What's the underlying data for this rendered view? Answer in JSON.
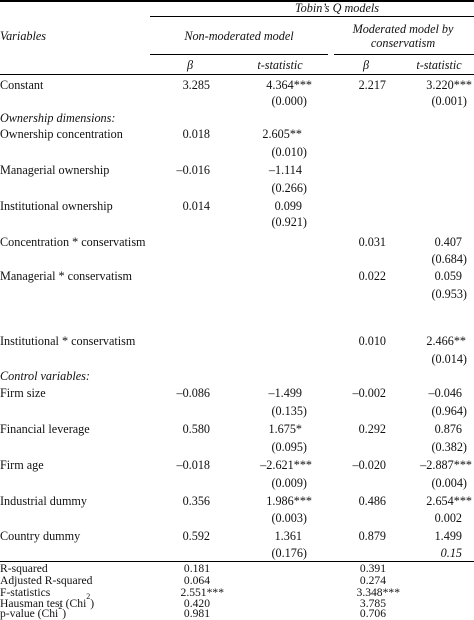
{
  "header": {
    "group_title": "Tobin’s Q models",
    "variables_label": "Variables",
    "non_moderated": "Non-moderated model",
    "moderated_line1": "Moderated model by",
    "moderated_line2": "conservatism",
    "beta": "β",
    "tstat": "t-statistic"
  },
  "rows": {
    "constant": {
      "label": "Constant",
      "b1": "3.285",
      "t1": "4.364***",
      "p1": "(0.000)",
      "b2": "2.217",
      "t2": "3.220***",
      "p2": "(0.001)"
    },
    "ownership_header": "Ownership dimensions:",
    "ownership_concentration": {
      "label": "Ownership concentration",
      "b1": "0.018",
      "t1": "2.605**",
      "p1": "(0.010)"
    },
    "managerial_ownership": {
      "label": "Managerial ownership",
      "b1": "–0.016",
      "t1": "–1.114",
      "p1": "(0.266)"
    },
    "institutional_ownership": {
      "label": "Institutional ownership",
      "b1": "0.014",
      "t1": "0.099",
      "p1": "(0.921)"
    },
    "concentration_conservatism": {
      "label": "Concentration * conservatism",
      "b2": "0.031",
      "t2": "0.407",
      "p2": "(0.684)"
    },
    "managerial_conservatism": {
      "label": "Managerial * conservatism",
      "b2": "0.022",
      "t2": "0.059",
      "p2": "(0.953)"
    },
    "institutional_conservatism": {
      "label": "Institutional * conservatism",
      "b2": "0.010",
      "t2": "2.466**",
      "p2": "(0.014)"
    },
    "control_header": "Control variables:",
    "firm_size": {
      "label": "Firm size",
      "b1": "–0.086",
      "t1": "–1.499",
      "p1": "(0.135)",
      "b2": "–0.002",
      "t2": "–0.046",
      "p2": "(0.964)"
    },
    "financial_leverage": {
      "label": "Financial leverage",
      "b1": "0.580",
      "t1": "1.675*",
      "p1": "(0.095)",
      "b2": "0.292",
      "t2": "0.876",
      "p2": "(0.382)"
    },
    "firm_age": {
      "label": "Firm age",
      "b1": "–0.018",
      "t1": "–2.621***",
      "p1": "(0.009)",
      "b2": "–0.020",
      "t2": "–2.887***",
      "p2": "(0.004)"
    },
    "industrial_dummy": {
      "label": "Industrial dummy",
      "b1": "0.356",
      "t1": "1.986***",
      "p1": "(0.003)",
      "b2": "0.486",
      "t2": "2.654***",
      "p2": "0.002"
    },
    "country_dummy": {
      "label": "Country dummy",
      "b1": "0.592",
      "t1": "1.361",
      "p1": "(0.176)",
      "b2": "0.879",
      "t2": "1.499",
      "p2": "0.15"
    }
  },
  "stats": {
    "r_squared": {
      "label": "R-squared",
      "v1": "0.181",
      "v2": "0.391"
    },
    "adj_r_squared": {
      "label": "Adjusted R-squared",
      "v1": "0.064",
      "v2": "0.274"
    },
    "f_statistics": {
      "label": "F-statistics",
      "v1": "2.551***",
      "v2": "3.348***"
    },
    "hausman": {
      "label": "Hausman test (Chi",
      "sup": "2",
      "close": ")",
      "v1": "0.420",
      "v2": "3.785"
    },
    "p_value": {
      "label": "p-value (Chi",
      "sup": "2",
      "close": ")",
      "v1": "0.981",
      "v2": "0.706"
    }
  }
}
